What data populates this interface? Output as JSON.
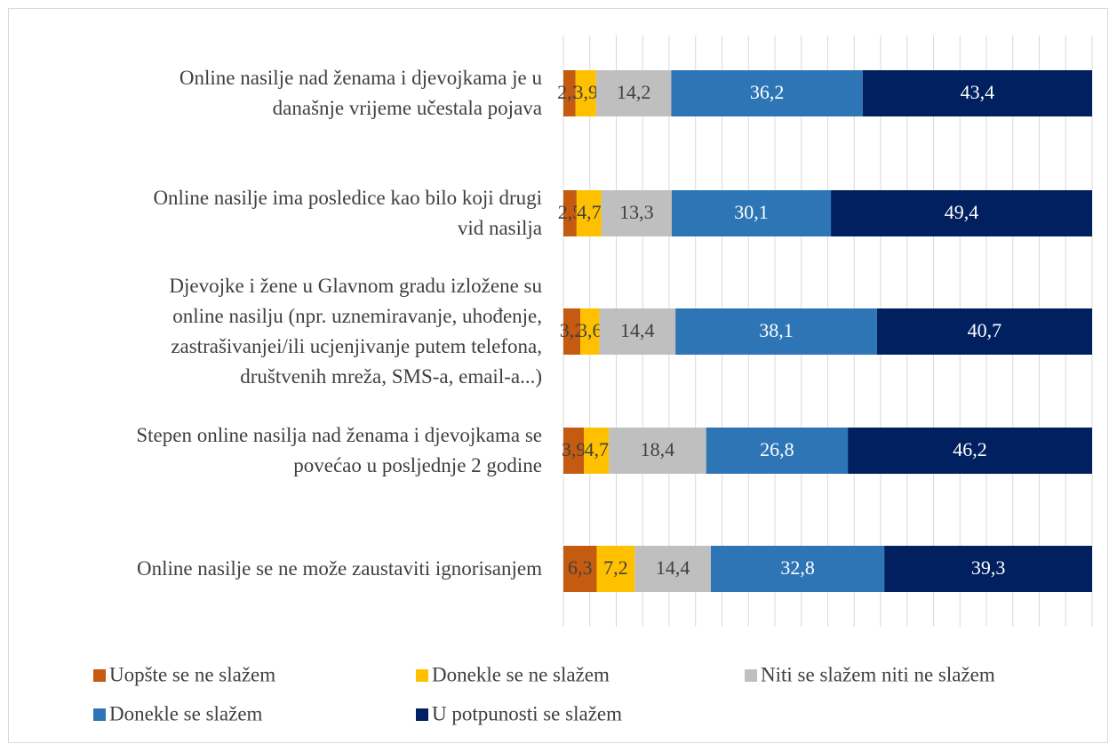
{
  "chart_data": {
    "type": "stacked_barh",
    "categories": [
      "Online nasilje nad ženama i djevojkama je u\ndanašnje vrijeme učestala pojava",
      "Online nasilje ima posledice kao bilo koji drugi\nvid nasilja",
      "Djevojke i žene u Glavnom gradu  izložene su\nonline nasilju (npr. uznemiravanje, uhođenje,\nzastrašivanjei/ili ucjenjivanje putem telefona,\ndruštvenih mreža, SMS-a, email-a...)",
      "Stepen online nasilja nad ženama i djevojkama se\npovećao u posljednje 2 godine",
      "Online nasilje se ne može zaustaviti ignorisanjem"
    ],
    "series": [
      {
        "name": "Uopšte se ne slažem",
        "color": "#c55a11",
        "values": [
          2.3,
          2.5,
          3.2,
          3.9,
          6.3
        ],
        "value_labels": [
          "2,3",
          "2,5",
          "3,2",
          "3,9",
          "6,3"
        ]
      },
      {
        "name": "Donekle se ne slažem",
        "color": "#ffc000",
        "values": [
          3.9,
          4.7,
          3.6,
          4.7,
          7.2
        ],
        "value_labels": [
          "3,9",
          "4,7",
          "3,6",
          "4,7",
          "7,2"
        ]
      },
      {
        "name": "Niti se slažem niti ne slažem",
        "color": "#bfbfbf",
        "values": [
          14.2,
          13.3,
          14.4,
          18.4,
          14.4
        ],
        "value_labels": [
          "14,2",
          "13,3",
          "14,4",
          "18,4",
          "14,4"
        ]
      },
      {
        "name": "Donekle se slažem",
        "color": "#2e75b6",
        "values": [
          36.2,
          30.1,
          38.1,
          26.8,
          32.8
        ],
        "value_labels": [
          "36,2",
          "30,1",
          "38,1",
          "26,8",
          "32,8"
        ]
      },
      {
        "name": "U potpunosti se slažem",
        "color": "#002060",
        "values": [
          43.4,
          49.4,
          40.7,
          46.2,
          39.3
        ],
        "value_labels": [
          "43,4",
          "49,4",
          "40,7",
          "46,2",
          "39,3"
        ]
      }
    ],
    "xlim": [
      0,
      100
    ],
    "xticks": [
      0,
      5,
      10,
      15,
      20,
      25,
      30,
      35,
      40,
      45,
      50,
      55,
      60,
      65,
      70,
      75,
      80,
      85,
      90,
      95,
      100
    ],
    "grid": true,
    "legend": "bottom"
  }
}
